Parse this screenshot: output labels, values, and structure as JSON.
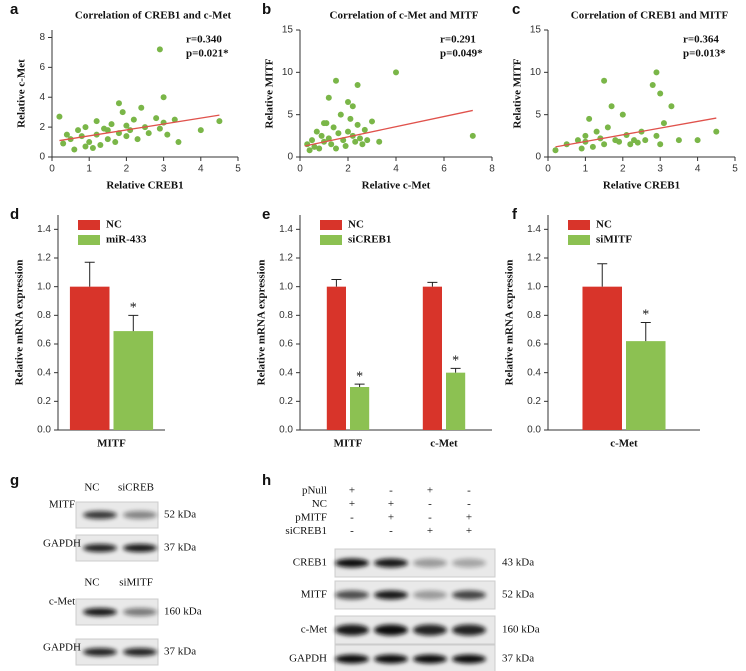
{
  "chart_data": [
    {
      "type": "scatter",
      "panel": "a",
      "title": "Correlation of CREB1 and c-Met",
      "xlabel": "Relative CREB1",
      "ylabel": "Relative c-Met",
      "annotations": [
        "r=0.340",
        "p=0.021*"
      ],
      "color": "#7ab648",
      "x": [
        0.2,
        0.3,
        0.5,
        0.6,
        0.7,
        0.8,
        0.9,
        0.9,
        1.0,
        1.1,
        1.2,
        1.2,
        1.3,
        1.4,
        1.5,
        1.6,
        1.7,
        1.8,
        1.8,
        1.9,
        2.0,
        2.0,
        2.1,
        2.2,
        2.3,
        2.4,
        2.5,
        2.6,
        2.8,
        2.9,
        2.9,
        3.0,
        3.0,
        3.1,
        3.3,
        3.4,
        4.0,
        4.5,
        0.4,
        1.5
      ],
      "values": [
        2.7,
        0.9,
        1.2,
        0.5,
        1.8,
        1.4,
        0.7,
        2.0,
        1.0,
        0.6,
        1.5,
        2.4,
        0.8,
        1.9,
        1.2,
        2.2,
        1.0,
        3.6,
        1.6,
        3.0,
        1.4,
        2.1,
        1.8,
        2.5,
        1.2,
        3.3,
        2.0,
        1.6,
        2.6,
        7.2,
        1.9,
        4.0,
        2.3,
        1.5,
        2.5,
        1.0,
        1.8,
        2.4,
        1.5,
        1.8
      ],
      "fit": {
        "color": "#e0524c",
        "x": [
          0.2,
          4.5
        ],
        "values": [
          1.1,
          2.8
        ]
      },
      "xlim": [
        0,
        5
      ],
      "xticks": [
        0,
        1,
        2,
        3,
        4,
        5
      ],
      "ylim": [
        0,
        8.5
      ],
      "yticks": [
        0,
        2,
        4,
        6,
        8
      ]
    },
    {
      "type": "scatter",
      "panel": "b",
      "title": "Correlation of c-Met and MITF",
      "xlabel": "Relative c-Met",
      "ylabel": "Relative MITF",
      "annotations": [
        "r=0.291",
        "p=0.049*"
      ],
      "color": "#7ab648",
      "x": [
        0.3,
        0.4,
        0.5,
        0.6,
        0.7,
        0.8,
        0.9,
        1.0,
        1.1,
        1.2,
        1.3,
        1.4,
        1.5,
        1.5,
        1.6,
        1.7,
        1.8,
        1.9,
        2.0,
        2.0,
        2.1,
        2.2,
        2.3,
        2.4,
        2.4,
        2.5,
        2.6,
        2.7,
        2.8,
        3.0,
        3.3,
        4.0,
        7.2,
        1.2,
        2.2,
        1.0
      ],
      "values": [
        1.5,
        0.8,
        2.0,
        1.2,
        3.0,
        1.0,
        2.5,
        1.8,
        4.0,
        2.2,
        1.5,
        3.5,
        9.0,
        1.0,
        2.8,
        5.0,
        2.0,
        1.3,
        6.5,
        3.0,
        4.5,
        2.5,
        1.8,
        3.8,
        8.5,
        2.2,
        1.5,
        3.2,
        2.0,
        4.2,
        1.8,
        10.0,
        2.5,
        7.0,
        6.0,
        4.0
      ],
      "fit": {
        "color": "#e0524c",
        "x": [
          0.2,
          7.2
        ],
        "values": [
          1.3,
          5.5
        ]
      },
      "xlim": [
        0,
        8
      ],
      "xticks": [
        0,
        2,
        4,
        6,
        8
      ],
      "ylim": [
        0,
        15
      ],
      "yticks": [
        0,
        5,
        10,
        15
      ]
    },
    {
      "type": "scatter",
      "panel": "c",
      "title": "Correlation of CREB1 and MITF",
      "xlabel": "Relative CREB1",
      "ylabel": "Relative MITF",
      "annotations": [
        "r=0.364",
        "p=0.013*"
      ],
      "color": "#7ab648",
      "x": [
        0.2,
        0.5,
        0.8,
        0.9,
        1.0,
        1.1,
        1.2,
        1.3,
        1.4,
        1.5,
        1.5,
        1.6,
        1.7,
        1.8,
        1.9,
        2.0,
        2.1,
        2.2,
        2.3,
        2.5,
        2.6,
        2.8,
        2.9,
        2.9,
        3.0,
        3.0,
        3.1,
        3.3,
        3.5,
        4.0,
        4.5,
        1.0,
        2.4
      ],
      "values": [
        0.8,
        1.5,
        2.0,
        1.0,
        2.5,
        4.5,
        1.2,
        3.0,
        2.2,
        9.0,
        1.5,
        3.5,
        6.0,
        2.0,
        1.8,
        5.0,
        2.6,
        1.5,
        2.0,
        3.0,
        2.0,
        8.5,
        10.0,
        2.5,
        7.5,
        1.5,
        4.0,
        6.0,
        2.0,
        2.0,
        3.0,
        1.8,
        1.7
      ],
      "fit": {
        "color": "#e0524c",
        "x": [
          0.2,
          4.5
        ],
        "values": [
          1.2,
          4.6
        ]
      },
      "xlim": [
        0,
        5
      ],
      "xticks": [
        0,
        1,
        2,
        3,
        4,
        5
      ],
      "ylim": [
        0,
        15
      ],
      "yticks": [
        0,
        5,
        10,
        15
      ]
    },
    {
      "type": "bar",
      "panel": "d",
      "ylabel": "Relative mRNA expression",
      "categories": [
        "MITF"
      ],
      "series": [
        {
          "name": "NC",
          "color": "#d8342a",
          "values": [
            1.0
          ],
          "errors": [
            0.17
          ],
          "stars": [
            null
          ]
        },
        {
          "name": "miR-433",
          "color": "#8cc152",
          "values": [
            0.69
          ],
          "errors": [
            0.11
          ],
          "stars": [
            "*"
          ]
        }
      ],
      "ylim": [
        0,
        1.5
      ],
      "yticks": [
        {
          "value": 0,
          "label": "0.0"
        },
        {
          "value": 0.2,
          "label": "0.2"
        },
        {
          "value": 0.4,
          "label": "0.4"
        },
        {
          "value": 0.6,
          "label": "0.6"
        },
        {
          "value": 0.8,
          "label": "0.8"
        },
        {
          "value": 1,
          "label": "1.0"
        },
        {
          "value": 1.2,
          "label": "1.2"
        },
        {
          "value": 1.4,
          "label": "1.4"
        }
      ]
    },
    {
      "type": "bar",
      "panel": "e",
      "ylabel": "Relative mRNA expression",
      "categories": [
        "MITF",
        "c-Met"
      ],
      "series": [
        {
          "name": "NC",
          "color": "#d8342a",
          "values": [
            1.0,
            1.0
          ],
          "errors": [
            0.05,
            0.03
          ],
          "stars": [
            null,
            null
          ]
        },
        {
          "name": "siCREB1",
          "color": "#8cc152",
          "values": [
            0.3,
            0.4
          ],
          "errors": [
            0.02,
            0.03
          ],
          "stars": [
            "*",
            "*"
          ]
        }
      ],
      "ylim": [
        0,
        1.5
      ],
      "yticks": [
        {
          "value": 0,
          "label": "0.0"
        },
        {
          "value": 0.2,
          "label": "0.2"
        },
        {
          "value": 0.4,
          "label": "0.4"
        },
        {
          "value": 0.6,
          "label": "0.6"
        },
        {
          "value": 0.8,
          "label": "0.8"
        },
        {
          "value": 1,
          "label": "1.0"
        },
        {
          "value": 1.2,
          "label": "1.2"
        },
        {
          "value": 1.4,
          "label": "1.4"
        }
      ]
    },
    {
      "type": "bar",
      "panel": "f",
      "ylabel": "Relative mRNA expression",
      "categories": [
        "c-Met"
      ],
      "series": [
        {
          "name": "NC",
          "color": "#d8342a",
          "values": [
            1.0
          ],
          "errors": [
            0.16
          ],
          "stars": [
            null
          ]
        },
        {
          "name": "siMITF",
          "color": "#8cc152",
          "values": [
            0.62
          ],
          "errors": [
            0.13
          ],
          "stars": [
            "*"
          ]
        }
      ],
      "ylim": [
        0,
        1.5
      ],
      "yticks": [
        {
          "value": 0,
          "label": "0.0"
        },
        {
          "value": 0.2,
          "label": "0.2"
        },
        {
          "value": 0.4,
          "label": "0.4"
        },
        {
          "value": 0.6,
          "label": "0.6"
        },
        {
          "value": 0.8,
          "label": "0.8"
        },
        {
          "value": 1,
          "label": "1.0"
        },
        {
          "value": 1.2,
          "label": "1.2"
        },
        {
          "value": 1.4,
          "label": "1.4"
        }
      ]
    }
  ],
  "blots": [
    {
      "panel": "g",
      "groups": [
        {
          "lanes": [
            "NC",
            "siCREB"
          ],
          "rows": [
            {
              "label": "MITF",
              "size": "52 kDa"
            },
            {
              "label": "GAPDH",
              "size": "37 kDa"
            }
          ]
        },
        {
          "lanes": [
            "NC",
            "siMITF"
          ],
          "rows": [
            {
              "label": "c-Met",
              "size": "160 kDa"
            },
            {
              "label": "GAPDH",
              "size": "37 kDa"
            }
          ]
        }
      ]
    },
    {
      "panel": "h",
      "conditions": [
        {
          "label": "pNull",
          "marks": [
            "+",
            "-",
            "+",
            "-"
          ]
        },
        {
          "label": "NC",
          "marks": [
            "+",
            "+",
            "-",
            "-"
          ]
        },
        {
          "label": "pMITF",
          "marks": [
            "-",
            "+",
            "-",
            "+"
          ]
        },
        {
          "label": "siCREB1",
          "marks": [
            "-",
            "-",
            "+",
            "+"
          ]
        }
      ],
      "rows": [
        {
          "label": "CREB1",
          "size": "43 kDa"
        },
        {
          "label": "MITF",
          "size": "52 kDa"
        },
        {
          "label": "c-Met",
          "size": "160 kDa"
        },
        {
          "label": "GAPDH",
          "size": "37 kDa"
        }
      ]
    }
  ]
}
